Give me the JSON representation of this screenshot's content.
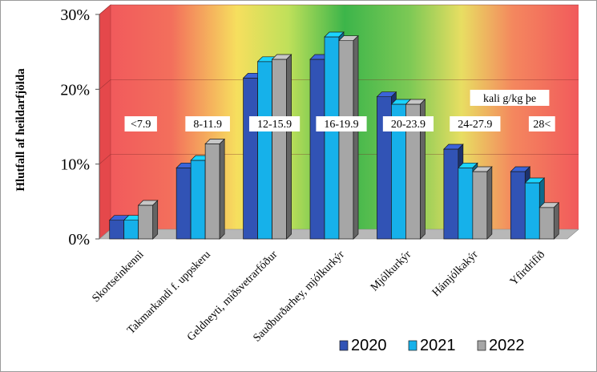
{
  "chart_data": {
    "type": "bar",
    "style": "3d",
    "ylabel": "Hlutfall af heildarfjölda",
    "ylim": [
      0,
      30
    ],
    "yticks": [
      "0%",
      "10%",
      "20%",
      "30%"
    ],
    "grid": true,
    "legend_position": "bottom-right",
    "background": "vertical gradient red-yellow-green-yellow-red",
    "categories": [
      "Skortseinkenni",
      "Takmarkandi f. uppskeru",
      "Geldneyti, miðsvetrarfóður",
      "Sauðburðarhey, mjólkurkýr",
      "Mjólkurkýr",
      "Hámjólkakýr",
      "Yfirdrifið"
    ],
    "range_labels": [
      "<7.9",
      "8-11.9",
      "12-15.9",
      "16-19.9",
      "20-23.9",
      "24-27.9",
      "28<"
    ],
    "annotation": "kali g/kg þe",
    "series": [
      {
        "name": "2020",
        "color": "#3153b5",
        "values": [
          2.5,
          9.5,
          21.5,
          24,
          19,
          12,
          9
        ]
      },
      {
        "name": "2021",
        "color": "#16b1ea",
        "values": [
          2.5,
          10.5,
          23.7,
          27,
          18,
          9.5,
          7.5
        ]
      },
      {
        "name": "2022",
        "color": "#a6a6a6",
        "values": [
          4.5,
          12.7,
          24,
          26.5,
          18,
          9,
          4.2
        ]
      }
    ]
  }
}
